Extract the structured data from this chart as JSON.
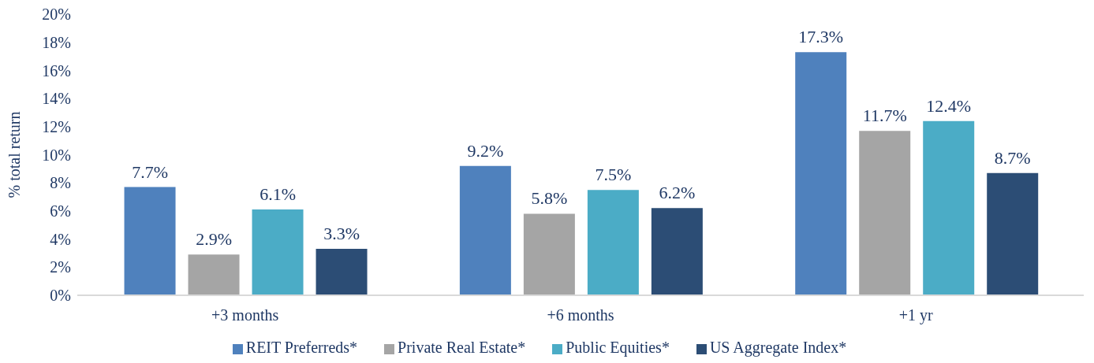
{
  "chart_data": {
    "type": "bar",
    "ylabel": "% total return",
    "categories": [
      "+3 months",
      "+6 months",
      "+1 yr"
    ],
    "series": [
      {
        "name": "REIT Preferreds*",
        "color": "#4f81bd",
        "values": [
          7.7,
          9.2,
          17.3
        ],
        "value_labels": [
          "7.7%",
          "9.2%",
          "17.3%"
        ]
      },
      {
        "name": "Private Real Estate*",
        "color": "#a5a5a5",
        "values": [
          2.9,
          5.8,
          11.7
        ],
        "value_labels": [
          "2.9%",
          "5.8%",
          "11.7%"
        ]
      },
      {
        "name": "Public Equities*",
        "color": "#4bacc6",
        "values": [
          6.1,
          7.5,
          12.4
        ],
        "value_labels": [
          "6.1%",
          "7.5%",
          "12.4%"
        ]
      },
      {
        "name": "US Aggregate Index*",
        "color": "#2c4d75",
        "values": [
          3.3,
          6.2,
          8.7
        ],
        "value_labels": [
          "3.3%",
          "6.2%",
          "8.7%"
        ]
      }
    ],
    "ylim": [
      0,
      20
    ],
    "yticks": [
      {
        "value": 0,
        "label": "0%"
      },
      {
        "value": 2,
        "label": "2%"
      },
      {
        "value": 4,
        "label": "4%"
      },
      {
        "value": 6,
        "label": "6%"
      },
      {
        "value": 8,
        "label": "8%"
      },
      {
        "value": 10,
        "label": "10%"
      },
      {
        "value": 12,
        "label": "12%"
      },
      {
        "value": 14,
        "label": "14%"
      },
      {
        "value": 16,
        "label": "16%"
      },
      {
        "value": 18,
        "label": "18%"
      },
      {
        "value": 20,
        "label": "20%"
      }
    ],
    "grid": false,
    "legend": "bottom"
  }
}
